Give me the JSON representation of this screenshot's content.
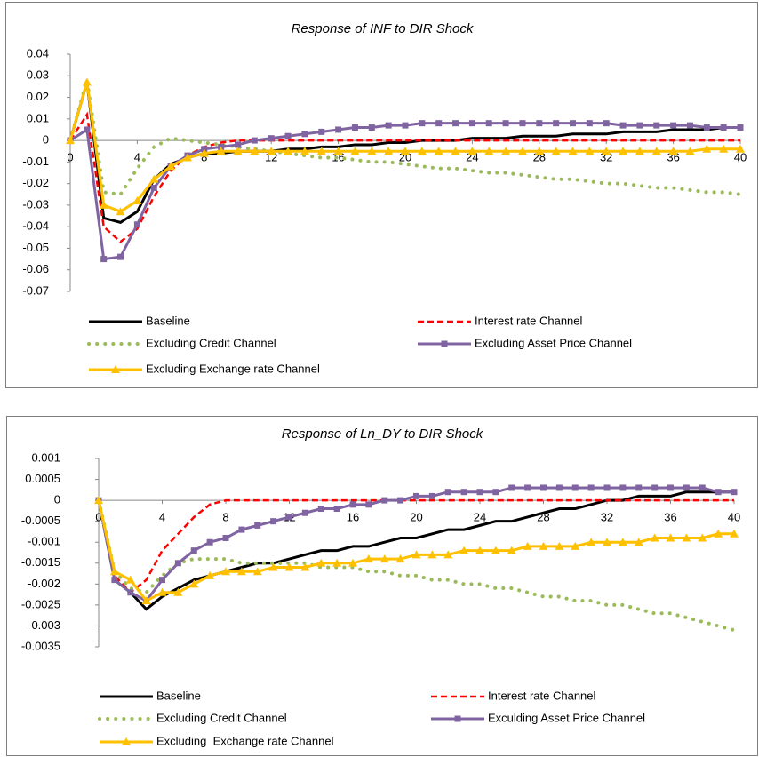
{
  "chart_data": [
    {
      "type": "line",
      "title": "Response of INF to DIR Shock",
      "x": [
        0,
        1,
        2,
        3,
        4,
        5,
        6,
        7,
        8,
        9,
        10,
        11,
        12,
        13,
        14,
        15,
        16,
        17,
        18,
        19,
        20,
        21,
        22,
        23,
        24,
        25,
        26,
        27,
        28,
        29,
        30,
        31,
        32,
        33,
        34,
        35,
        36,
        37,
        38,
        39,
        40
      ],
      "xlim": [
        0,
        40
      ],
      "xticks": [
        0,
        4,
        8,
        12,
        16,
        20,
        24,
        28,
        32,
        36,
        40
      ],
      "ylim": [
        -0.07,
        0.04
      ],
      "yticks": [
        0.04,
        0.03,
        0.02,
        0.01,
        0,
        -0.01,
        -0.02,
        -0.03,
        -0.04,
        -0.05,
        -0.06,
        -0.07
      ],
      "grid": false,
      "series": [
        {
          "name": "Baseline",
          "color": "#000000",
          "dash": "solid",
          "marker": "none",
          "values": [
            0,
            0.027,
            -0.036,
            -0.038,
            -0.033,
            -0.018,
            -0.011,
            -0.008,
            -0.006,
            -0.006,
            -0.005,
            -0.005,
            -0.005,
            -0.004,
            -0.004,
            -0.003,
            -0.003,
            -0.002,
            -0.002,
            -0.001,
            -0.001,
            0,
            0,
            0,
            0.001,
            0.001,
            0.001,
            0.002,
            0.002,
            0.002,
            0.003,
            0.003,
            0.003,
            0.004,
            0.004,
            0.004,
            0.005,
            0.005,
            0.005,
            0.006,
            0.006
          ]
        },
        {
          "name": "Interest rate Channel",
          "color": "#ff0000",
          "dash": "dash",
          "marker": "none",
          "values": [
            0,
            0.012,
            -0.04,
            -0.047,
            -0.041,
            -0.026,
            -0.014,
            -0.007,
            -0.003,
            -0.001,
            0,
            0,
            0,
            0,
            0,
            0,
            0,
            0,
            0,
            0,
            0,
            0,
            0,
            0,
            0,
            0,
            0,
            0,
            0,
            0,
            0,
            0,
            0,
            0,
            0,
            0,
            0,
            0,
            0,
            0,
            0
          ]
        },
        {
          "name": "Excluding Credit Channel",
          "color": "#9bbb59",
          "dash": "dot",
          "marker": "none",
          "values": [
            0,
            0.028,
            -0.024,
            -0.025,
            -0.013,
            -0.003,
            0.001,
            0,
            -0.001,
            -0.002,
            -0.003,
            -0.004,
            -0.005,
            -0.006,
            -0.007,
            -0.008,
            -0.008,
            -0.009,
            -0.01,
            -0.01,
            -0.011,
            -0.012,
            -0.013,
            -0.013,
            -0.014,
            -0.015,
            -0.015,
            -0.016,
            -0.017,
            -0.018,
            -0.018,
            -0.019,
            -0.02,
            -0.02,
            -0.021,
            -0.022,
            -0.022,
            -0.023,
            -0.024,
            -0.024,
            -0.025
          ]
        },
        {
          "name": "Excluding Asset Price Channel",
          "color": "#8064a2",
          "dash": "solid",
          "marker": "square",
          "values": [
            0,
            0.005,
            -0.055,
            -0.054,
            -0.039,
            -0.022,
            -0.012,
            -0.007,
            -0.004,
            -0.003,
            -0.002,
            0,
            0.001,
            0.002,
            0.003,
            0.004,
            0.005,
            0.006,
            0.006,
            0.007,
            0.007,
            0.008,
            0.008,
            0.008,
            0.008,
            0.008,
            0.008,
            0.008,
            0.008,
            0.008,
            0.008,
            0.008,
            0.008,
            0.007,
            0.007,
            0.007,
            0.007,
            0.007,
            0.006,
            0.006,
            0.006
          ]
        },
        {
          "name": "Excluding Exchange rate Channel",
          "color": "#ffc000",
          "dash": "solid",
          "marker": "triangle",
          "values": [
            0,
            0.027,
            -0.03,
            -0.033,
            -0.028,
            -0.018,
            -0.012,
            -0.008,
            -0.006,
            -0.005,
            -0.005,
            -0.005,
            -0.005,
            -0.005,
            -0.005,
            -0.005,
            -0.005,
            -0.005,
            -0.005,
            -0.005,
            -0.005,
            -0.005,
            -0.005,
            -0.005,
            -0.005,
            -0.005,
            -0.005,
            -0.005,
            -0.005,
            -0.005,
            -0.005,
            -0.005,
            -0.005,
            -0.005,
            -0.005,
            -0.005,
            -0.005,
            -0.005,
            -0.004,
            -0.004,
            -0.004
          ]
        }
      ]
    },
    {
      "type": "line",
      "title": "Response of Ln_DY to DIR Shock",
      "x": [
        0,
        1,
        2,
        3,
        4,
        5,
        6,
        7,
        8,
        9,
        10,
        11,
        12,
        13,
        14,
        15,
        16,
        17,
        18,
        19,
        20,
        21,
        22,
        23,
        24,
        25,
        26,
        27,
        28,
        29,
        30,
        31,
        32,
        33,
        34,
        35,
        36,
        37,
        38,
        39,
        40
      ],
      "xlim": [
        0,
        40
      ],
      "xticks": [
        0,
        4,
        8,
        12,
        16,
        20,
        24,
        28,
        32,
        36,
        40
      ],
      "ylim": [
        -0.0035,
        0.001
      ],
      "yticks": [
        0.001,
        0.0005,
        0,
        -0.0005,
        -0.001,
        -0.0015,
        -0.002,
        -0.0025,
        -0.003,
        -0.0035
      ],
      "grid": false,
      "series": [
        {
          "name": "Baseline",
          "color": "#000000",
          "dash": "solid",
          "marker": "none",
          "values": [
            0,
            -0.0019,
            -0.0022,
            -0.0026,
            -0.0023,
            -0.0021,
            -0.0019,
            -0.0018,
            -0.0017,
            -0.0016,
            -0.0015,
            -0.0015,
            -0.0014,
            -0.0013,
            -0.0012,
            -0.0012,
            -0.0011,
            -0.0011,
            -0.001,
            -0.0009,
            -0.0009,
            -0.0008,
            -0.0007,
            -0.0007,
            -0.0006,
            -0.0005,
            -0.0005,
            -0.0004,
            -0.0003,
            -0.0002,
            -0.0002,
            -0.0001,
            0,
            0,
            0.0001,
            0.0001,
            0.0001,
            0.0002,
            0.0002,
            0.0002,
            0.0002
          ]
        },
        {
          "name": "Interest rate Channel",
          "color": "#ff0000",
          "dash": "dash",
          "marker": "none",
          "values": [
            0,
            -0.0018,
            -0.0022,
            -0.0019,
            -0.0012,
            -0.0008,
            -0.0004,
            -0.0001,
            0,
            0,
            0,
            0,
            0,
            0,
            0,
            0,
            0,
            0,
            0,
            0,
            0,
            0,
            0,
            0,
            0,
            0,
            0,
            0,
            0,
            0,
            0,
            0,
            0,
            0,
            0,
            0,
            0,
            0,
            0,
            0,
            0
          ]
        },
        {
          "name": "Excluding Credit Channel",
          "color": "#9bbb59",
          "dash": "dot",
          "marker": "none",
          "values": [
            0,
            -0.0017,
            -0.0021,
            -0.0022,
            -0.0018,
            -0.0015,
            -0.0014,
            -0.0014,
            -0.0014,
            -0.0015,
            -0.0015,
            -0.0015,
            -0.0015,
            -0.0015,
            -0.0016,
            -0.0016,
            -0.0016,
            -0.0017,
            -0.0017,
            -0.0018,
            -0.0018,
            -0.0019,
            -0.0019,
            -0.002,
            -0.002,
            -0.0021,
            -0.0021,
            -0.0022,
            -0.0023,
            -0.0023,
            -0.0024,
            -0.0024,
            -0.0025,
            -0.0025,
            -0.0026,
            -0.0027,
            -0.0027,
            -0.0028,
            -0.0029,
            -0.003,
            -0.0031
          ]
        },
        {
          "name": "Exculding Asset Price Channel",
          "color": "#8064a2",
          "dash": "solid",
          "marker": "square",
          "values": [
            0,
            -0.0019,
            -0.0022,
            -0.0024,
            -0.0019,
            -0.0015,
            -0.0012,
            -0.001,
            -0.0009,
            -0.0007,
            -0.0006,
            -0.0005,
            -0.0004,
            -0.0003,
            -0.0002,
            -0.0002,
            -0.0001,
            -0.0001,
            0,
            0,
            0.0001,
            0.0001,
            0.0002,
            0.0002,
            0.0002,
            0.0002,
            0.0003,
            0.0003,
            0.0003,
            0.0003,
            0.0003,
            0.0003,
            0.0003,
            0.0003,
            0.0003,
            0.0003,
            0.0003,
            0.0003,
            0.0003,
            0.0002,
            0.0002
          ]
        },
        {
          "name": "Excluding  Exchange rate Channel",
          "color": "#ffc000",
          "dash": "solid",
          "marker": "triangle",
          "values": [
            0,
            -0.0017,
            -0.0019,
            -0.0024,
            -0.0022,
            -0.0022,
            -0.002,
            -0.0018,
            -0.0017,
            -0.0017,
            -0.0017,
            -0.0016,
            -0.0016,
            -0.0016,
            -0.0015,
            -0.0015,
            -0.0015,
            -0.0014,
            -0.0014,
            -0.0014,
            -0.0013,
            -0.0013,
            -0.0013,
            -0.0012,
            -0.0012,
            -0.0012,
            -0.0012,
            -0.0011,
            -0.0011,
            -0.0011,
            -0.0011,
            -0.001,
            -0.001,
            -0.001,
            -0.001,
            -0.0009,
            -0.0009,
            -0.0009,
            -0.0009,
            -0.0008,
            -0.0008
          ]
        }
      ]
    }
  ]
}
